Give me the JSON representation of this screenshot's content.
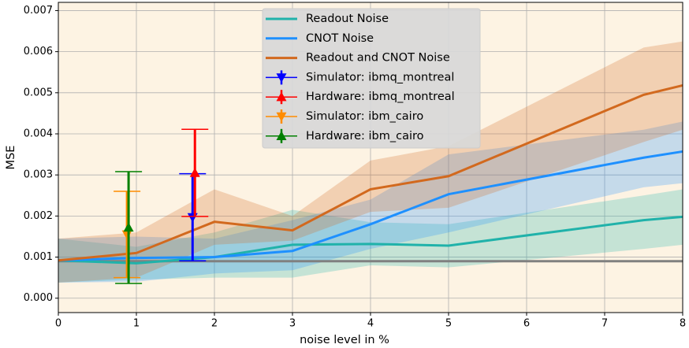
{
  "chart_data": {
    "type": "line",
    "xlabel": "noise level in %",
    "ylabel": "MSE",
    "xlim": [
      0,
      8
    ],
    "ylim": [
      -0.00035,
      0.0072
    ],
    "xticks": [
      0,
      1,
      2,
      3,
      4,
      5,
      6,
      7,
      8
    ],
    "yticks": [
      {
        "value": 0,
        "label": "0.000"
      },
      {
        "value": 0.001,
        "label": "0.001"
      },
      {
        "value": 0.002,
        "label": "0.002"
      },
      {
        "value": 0.003,
        "label": "0.003"
      },
      {
        "value": 0.004,
        "label": "0.004"
      },
      {
        "value": 0.005,
        "label": "0.005"
      },
      {
        "value": 0.006,
        "label": "0.006"
      },
      {
        "value": 0.007,
        "label": "0.007"
      }
    ],
    "grid": true,
    "legend": "upper center",
    "background": "#fdf3e3",
    "hline": {
      "value": 0.0009,
      "color": "#808080"
    },
    "series": [
      {
        "name": "Readout Noise",
        "color": "#20b2aa",
        "x": [
          0,
          1,
          2,
          3,
          4,
          5,
          7.5,
          8
        ],
        "values": [
          0.00092,
          0.00085,
          0.001,
          0.0013,
          0.00132,
          0.00128,
          0.0019,
          0.00198
        ],
        "lower": [
          0.00038,
          0.00045,
          0.0005,
          0.0005,
          0.0008,
          0.00075,
          0.0012,
          0.0013
        ],
        "upper": [
          0.00145,
          0.00125,
          0.0016,
          0.00215,
          0.00185,
          0.0018,
          0.0025,
          0.00265
        ]
      },
      {
        "name": "CNOT Noise",
        "color": "#1e90ff",
        "x": [
          0,
          1,
          2,
          3,
          4,
          5,
          7.5,
          8
        ],
        "values": [
          0.00092,
          0.00098,
          0.001,
          0.00115,
          0.0018,
          0.00253,
          0.00342,
          0.00357
        ],
        "lower": [
          0.00038,
          0.0004,
          0.0006,
          0.00068,
          0.0012,
          0.0016,
          0.0027,
          0.0028
        ],
        "upper": [
          0.00145,
          0.0015,
          0.00145,
          0.0019,
          0.0024,
          0.0035,
          0.0041,
          0.0043
        ]
      },
      {
        "name": "Readout and CNOT Noise",
        "color": "#d2691e",
        "x": [
          0,
          1,
          2,
          3,
          4,
          5,
          7.5,
          8
        ],
        "values": [
          0.00092,
          0.0011,
          0.00186,
          0.00165,
          0.00265,
          0.00297,
          0.00495,
          0.00518
        ],
        "lower": [
          0.00038,
          0.0005,
          0.0013,
          0.0014,
          0.0021,
          0.0022,
          0.0038,
          0.0041
        ],
        "upper": [
          0.00145,
          0.0016,
          0.00265,
          0.002,
          0.00335,
          0.0037,
          0.0061,
          0.00625
        ]
      }
    ],
    "points": [
      {
        "name": "Simulator: ibmq_montreal",
        "color": "#0000ff",
        "marker": "down",
        "x": 1.72,
        "y": 0.00197,
        "yerr": 0.00106
      },
      {
        "name": "Hardware: ibmq_montreal",
        "color": "#ff0000",
        "marker": "up",
        "x": 1.75,
        "y": 0.00305,
        "yerr": 0.00106
      },
      {
        "name": "Simulator: ibm_cairo",
        "color": "#ff8c00",
        "marker": "down",
        "x": 0.88,
        "y": 0.00155,
        "yerr": 0.00105
      },
      {
        "name": "Hardware: ibm_cairo",
        "color": "#008000",
        "marker": "up",
        "x": 0.9,
        "y": 0.00172,
        "yerr": 0.00136
      }
    ]
  }
}
